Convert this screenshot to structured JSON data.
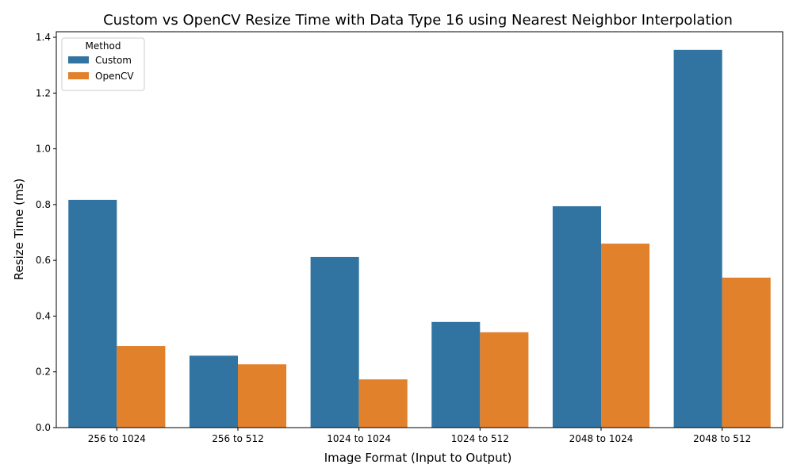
{
  "chart_data": {
    "type": "bar",
    "title": "Custom vs OpenCV Resize Time with Data Type 16 using Nearest Neighbor Interpolation",
    "xlabel": "Image Format (Input to Output)",
    "ylabel": "Resize Time (ms)",
    "categories": [
      "256 to 1024",
      "256 to 512",
      "1024 to 1024",
      "1024 to 512",
      "2048 to 1024",
      "2048 to 512"
    ],
    "series": [
      {
        "name": "Custom",
        "color": "#3274a1",
        "values": [
          0.817,
          0.258,
          0.612,
          0.379,
          0.794,
          1.355
        ]
      },
      {
        "name": "OpenCV",
        "color": "#e1812c",
        "values": [
          0.293,
          0.227,
          0.173,
          0.342,
          0.66,
          0.538
        ]
      }
    ],
    "ylim": [
      0,
      1.42
    ],
    "yticks": [
      "0.0",
      "0.2",
      "0.4",
      "0.6",
      "0.8",
      "1.0",
      "1.2",
      "1.4"
    ],
    "legend": {
      "title": "Method",
      "position": "top-left"
    },
    "grid": false
  }
}
